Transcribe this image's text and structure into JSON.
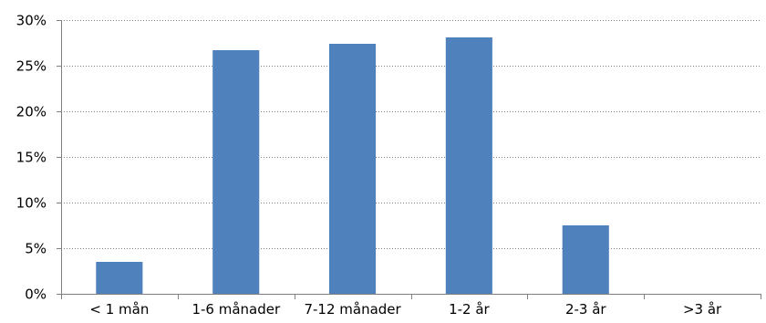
{
  "chart_data": {
    "type": "bar",
    "categories": [
      "< 1 mån",
      "1-6 månader",
      "7-12 månader",
      "1-2 år",
      "2-3 år",
      ">3 år"
    ],
    "values": [
      3.5,
      26.7,
      27.4,
      28.1,
      7.5,
      0
    ],
    "ylim": [
      0,
      30
    ],
    "yticks": [
      0,
      5,
      10,
      15,
      20,
      25,
      30
    ],
    "ytick_labels": [
      "0%",
      "5%",
      "10%",
      "15%",
      "20%",
      "25%",
      "30%"
    ],
    "grid": true,
    "bar_color": "#4F81BD"
  }
}
